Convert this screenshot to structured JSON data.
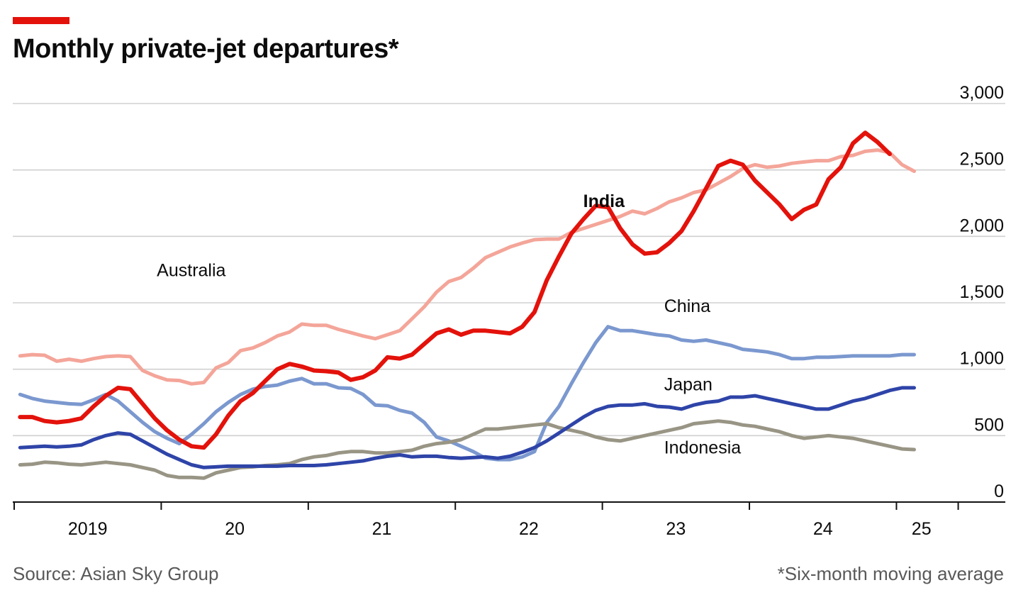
{
  "header": {
    "title": "Monthly private-jet departures*"
  },
  "footer": {
    "source": "Source: Asian Sky Group",
    "footnote": "*Six-month moving average"
  },
  "colors": {
    "accent": "#e3120b",
    "india": "#e3120b",
    "australia": "#f4a599",
    "china": "#7b98cf",
    "japan": "#2e44a8",
    "indonesia": "#999585",
    "grid": "#d0d0d0",
    "axis": "#121212"
  },
  "chart_data": {
    "type": "line",
    "title": "Monthly private-jet departures*",
    "xlabel": "",
    "ylabel": "",
    "ylim": [
      0,
      3000
    ],
    "yticks": [
      0,
      500,
      1000,
      1500,
      2000,
      2500,
      3000
    ],
    "ytick_labels": [
      "0",
      "500",
      "1,000",
      "1,500",
      "2,000",
      "2,500",
      "3,000"
    ],
    "xlim": [
      2019.0,
      2025.75
    ],
    "year_ticks": [
      2019,
      2020,
      2021,
      2022,
      2023,
      2024,
      2025,
      2025.42
    ],
    "x_labels": [
      {
        "text": "2019",
        "x": 2019.5
      },
      {
        "text": "20",
        "x": 2020.5
      },
      {
        "text": "21",
        "x": 2021.5
      },
      {
        "text": "22",
        "x": 2022.5
      },
      {
        "text": "23",
        "x": 2023.5
      },
      {
        "text": "24",
        "x": 2024.5
      },
      {
        "text": "25",
        "x": 2025.17
      }
    ],
    "grid": true,
    "x_start": 2019.04,
    "x_step": 0.0833,
    "series": [
      {
        "name": "Australia",
        "color": "#f4a599",
        "width": 5,
        "label": {
          "text": "Australia",
          "x": 2019.97,
          "y": 1700,
          "bold": false
        },
        "values": [
          1100,
          1110,
          1105,
          1060,
          1075,
          1060,
          1080,
          1095,
          1100,
          1095,
          990,
          950,
          920,
          915,
          890,
          900,
          1010,
          1050,
          1140,
          1160,
          1200,
          1250,
          1280,
          1340,
          1330,
          1330,
          1300,
          1275,
          1250,
          1230,
          1260,
          1290,
          1380,
          1470,
          1580,
          1660,
          1690,
          1760,
          1840,
          1880,
          1920,
          1950,
          1975,
          1980,
          1980,
          2030,
          2060,
          2090,
          2120,
          2150,
          2190,
          2170,
          2210,
          2260,
          2290,
          2330,
          2350,
          2400,
          2450,
          2510,
          2540,
          2520,
          2530,
          2550,
          2560,
          2570,
          2570,
          2600,
          2610,
          2640,
          2650,
          2630,
          2540,
          2490
        ]
      },
      {
        "name": "China",
        "color": "#7b98cf",
        "width": 5,
        "label": {
          "text": "China",
          "x": 2023.42,
          "y": 1430,
          "bold": false
        },
        "values": [
          810,
          780,
          760,
          750,
          740,
          735,
          770,
          810,
          760,
          680,
          600,
          530,
          480,
          440,
          510,
          590,
          680,
          750,
          810,
          850,
          870,
          880,
          910,
          930,
          890,
          890,
          860,
          855,
          810,
          730,
          725,
          690,
          670,
          600,
          490,
          460,
          420,
          380,
          330,
          320,
          320,
          340,
          380,
          600,
          720,
          890,
          1050,
          1200,
          1320,
          1290,
          1290,
          1275,
          1260,
          1250,
          1220,
          1210,
          1220,
          1200,
          1180,
          1150,
          1140,
          1130,
          1110,
          1080,
          1080,
          1090,
          1090,
          1095,
          1100,
          1100,
          1100,
          1100,
          1110,
          1110
        ]
      },
      {
        "name": "Indonesia",
        "color": "#999585",
        "width": 5,
        "label": {
          "text": "Indonesia",
          "x": 2023.42,
          "y": 365,
          "bold": false
        },
        "values": [
          280,
          285,
          300,
          295,
          285,
          280,
          290,
          300,
          290,
          280,
          260,
          240,
          200,
          185,
          185,
          180,
          220,
          240,
          260,
          265,
          275,
          280,
          290,
          320,
          340,
          350,
          370,
          380,
          380,
          370,
          370,
          380,
          390,
          420,
          440,
          450,
          470,
          510,
          550,
          550,
          560,
          570,
          580,
          590,
          560,
          540,
          520,
          490,
          470,
          460,
          480,
          500,
          520,
          540,
          560,
          590,
          600,
          610,
          600,
          580,
          570,
          550,
          530,
          500,
          480,
          490,
          500,
          490,
          480,
          460,
          440,
          420,
          400,
          395
        ]
      },
      {
        "name": "Japan",
        "color": "#2e44a8",
        "width": 5,
        "label": {
          "text": "Japan",
          "x": 2023.42,
          "y": 840,
          "bold": false
        },
        "values": [
          410,
          415,
          420,
          415,
          420,
          430,
          470,
          500,
          520,
          510,
          460,
          410,
          360,
          320,
          280,
          260,
          265,
          270,
          270,
          270,
          270,
          270,
          275,
          275,
          275,
          280,
          290,
          300,
          310,
          330,
          345,
          355,
          340,
          345,
          345,
          335,
          330,
          335,
          340,
          330,
          345,
          375,
          410,
          460,
          520,
          580,
          640,
          690,
          720,
          730,
          730,
          740,
          720,
          715,
          700,
          730,
          750,
          760,
          790,
          790,
          800,
          780,
          760,
          740,
          720,
          700,
          700,
          730,
          760,
          780,
          810,
          840,
          860,
          860
        ]
      },
      {
        "name": "India",
        "color": "#e3120b",
        "width": 6,
        "label": {
          "text": "India",
          "x": 2022.87,
          "y": 2220,
          "bold": true
        },
        "values": [
          640,
          640,
          610,
          600,
          610,
          630,
          720,
          800,
          860,
          850,
          740,
          630,
          540,
          470,
          420,
          410,
          510,
          650,
          760,
          820,
          910,
          1000,
          1040,
          1020,
          990,
          985,
          975,
          920,
          940,
          990,
          1090,
          1080,
          1110,
          1190,
          1270,
          1300,
          1260,
          1290,
          1290,
          1280,
          1270,
          1320,
          1430,
          1670,
          1850,
          2020,
          2130,
          2230,
          2220,
          2060,
          1940,
          1870,
          1880,
          1950,
          2040,
          2190,
          2360,
          2530,
          2570,
          2540,
          2420,
          2330,
          2240,
          2130,
          2200,
          2240,
          2430,
          2520,
          2700,
          2780,
          2710,
          2620
        ]
      }
    ]
  }
}
